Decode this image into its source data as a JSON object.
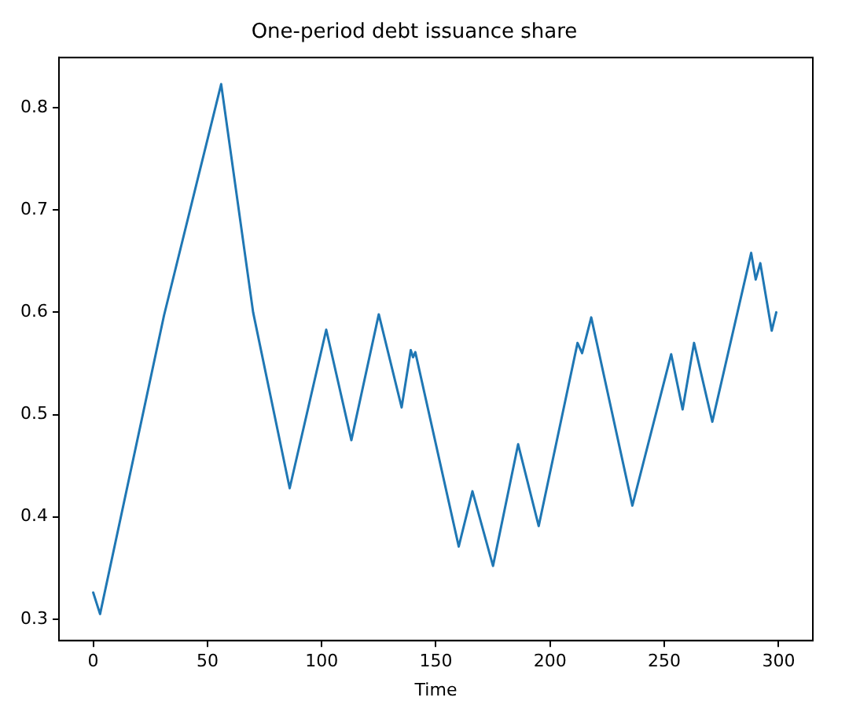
{
  "chart_data": {
    "type": "line",
    "title": "One-period debt issuance share",
    "xlabel": "Time",
    "x": [
      0,
      3,
      31,
      56,
      70,
      86,
      102,
      113,
      125,
      135,
      139,
      140,
      141,
      160,
      166,
      175,
      186,
      195,
      212,
      214,
      218,
      236,
      253,
      258,
      263,
      271,
      288,
      290,
      292,
      297,
      299
    ],
    "series": [
      {
        "color": "#1f77b4",
        "values": [
          0.326,
          0.305,
          0.597,
          0.823,
          0.6,
          0.428,
          0.583,
          0.475,
          0.598,
          0.507,
          0.563,
          0.556,
          0.561,
          0.371,
          0.425,
          0.352,
          0.471,
          0.391,
          0.57,
          0.56,
          0.595,
          0.411,
          0.559,
          0.505,
          0.57,
          0.493,
          0.658,
          0.632,
          0.648,
          0.582,
          0.6
        ]
      }
    ],
    "xlim": [
      -15,
      315
    ],
    "xticks": [
      0,
      50,
      100,
      150,
      200,
      250,
      300
    ],
    "ylim": [
      0.279,
      0.849
    ],
    "yticks": [
      0.3,
      0.4,
      0.5,
      0.6,
      0.7,
      0.8
    ],
    "grid": false,
    "legend": false,
    "marker": "none",
    "line_style": "solid"
  }
}
